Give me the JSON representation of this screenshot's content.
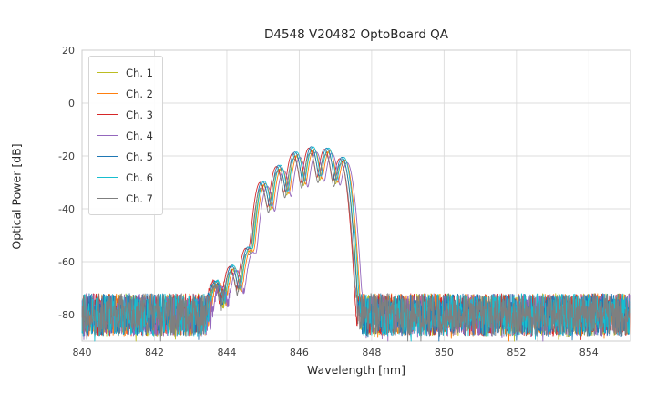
{
  "chart_data": {
    "type": "line",
    "title": "D4548 V20482 OptoBoard QA",
    "xlabel": "Wavelength [nm]",
    "ylabel": "Optical Power [dB]",
    "xlim": [
      840,
      855.15
    ],
    "ylim": [
      -90,
      20
    ],
    "xticks": [
      840,
      842,
      844,
      846,
      848,
      850,
      852,
      854
    ],
    "yticks": [
      -80,
      -60,
      -40,
      -20,
      0,
      20
    ],
    "grid": true,
    "grid_color": "#dcdcdc",
    "axes_border_color": "#cccccc",
    "legend_position": "upper left",
    "sample_step_nm": 0.01,
    "mode_sigma_nm": 0.085,
    "noise_floor_db": -80,
    "noise_amplitude_db": 8,
    "modes": [
      [
        843.7,
        -68.0
      ],
      [
        844.15,
        -62.0
      ],
      [
        844.6,
        -55.0
      ],
      [
        845.0,
        -30.0
      ],
      [
        845.45,
        -24.0
      ],
      [
        845.9,
        -19.0
      ],
      [
        846.35,
        -17.0
      ],
      [
        846.78,
        -17.5
      ],
      [
        847.2,
        -21.0
      ]
    ],
    "series": [
      {
        "name": "Ch. 1",
        "color": "#bcbd22",
        "shift_nm": 0.0,
        "peak_adjust_db": -1.0,
        "seed": 11
      },
      {
        "name": "Ch. 2",
        "color": "#ff7f0e",
        "shift_nm": 0.06,
        "peak_adjust_db": -0.5,
        "seed": 22
      },
      {
        "name": "Ch. 3",
        "color": "#d62728",
        "shift_nm": -0.08,
        "peak_adjust_db": 0.0,
        "seed": 33
      },
      {
        "name": "Ch. 4",
        "color": "#9467bd",
        "shift_nm": 0.12,
        "peak_adjust_db": -1.5,
        "seed": 44
      },
      {
        "name": "Ch. 5",
        "color": "#1f77b4",
        "shift_nm": -0.02,
        "peak_adjust_db": 0.5,
        "seed": 55
      },
      {
        "name": "Ch. 6",
        "color": "#17becf",
        "shift_nm": 0.03,
        "peak_adjust_db": 0.5,
        "seed": 66
      },
      {
        "name": "Ch. 7",
        "color": "#7f7f7f",
        "shift_nm": -0.05,
        "peak_adjust_db": -2.0,
        "seed": 77
      }
    ]
  }
}
